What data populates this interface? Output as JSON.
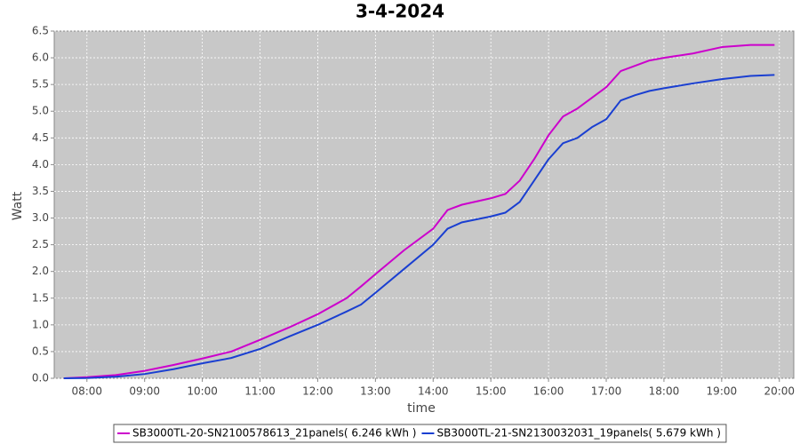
{
  "chart_data": {
    "type": "line",
    "title": "3-4-2024",
    "x_label": "time",
    "y_label": "Watt",
    "x": [
      "07:36",
      "08:00",
      "08:30",
      "09:00",
      "09:30",
      "10:00",
      "10:30",
      "11:00",
      "11:30",
      "12:00",
      "12:30",
      "12:45",
      "13:00",
      "13:30",
      "14:00",
      "14:15",
      "14:30",
      "15:00",
      "15:15",
      "15:30",
      "15:45",
      "16:00",
      "16:15",
      "16:30",
      "16:45",
      "17:00",
      "17:15",
      "17:30",
      "17:45",
      "18:00",
      "18:30",
      "19:00",
      "19:30",
      "19:55"
    ],
    "series": [
      {
        "name": "SB3000TL-20-SN2100578613_21panels( 6.246 kWh )",
        "color": "#cc00cc",
        "values": [
          0,
          0.02,
          0.06,
          0.14,
          0.25,
          0.37,
          0.5,
          0.72,
          0.95,
          1.2,
          1.5,
          1.72,
          1.95,
          2.4,
          2.8,
          3.15,
          3.25,
          3.37,
          3.45,
          3.7,
          4.1,
          4.55,
          4.9,
          5.05,
          5.25,
          5.45,
          5.75,
          5.85,
          5.95,
          6.0,
          6.08,
          6.2,
          6.24,
          6.24
        ]
      },
      {
        "name": "SB3000TL-21-SN2130032031_19panels( 5.679 kWh )",
        "color": "#1a3fd1",
        "values": [
          0,
          0.005,
          0.03,
          0.08,
          0.17,
          0.28,
          0.38,
          0.55,
          0.78,
          1.0,
          1.25,
          1.38,
          1.6,
          2.05,
          2.5,
          2.8,
          2.92,
          3.03,
          3.1,
          3.3,
          3.7,
          4.1,
          4.4,
          4.5,
          4.7,
          4.85,
          5.2,
          5.3,
          5.38,
          5.43,
          5.52,
          5.6,
          5.66,
          5.68
        ]
      }
    ],
    "xlim": [
      "07:26",
      "20:15"
    ],
    "xticks": [
      "08:00",
      "09:00",
      "10:00",
      "11:00",
      "12:00",
      "13:00",
      "14:00",
      "15:00",
      "16:00",
      "17:00",
      "18:00",
      "19:00",
      "20:00"
    ],
    "ylim": [
      0,
      6.5
    ],
    "yticks": [
      {
        "value": 0,
        "label": "0.0"
      },
      0.5,
      {
        "value": 1,
        "label": "1.0"
      },
      1.5,
      {
        "value": 2,
        "label": "2.0"
      },
      2.5,
      {
        "value": 3,
        "label": "3.0"
      },
      3.5,
      {
        "value": 4,
        "label": "4.0"
      },
      4.5,
      {
        "value": 5,
        "label": "5.0"
      },
      5.5,
      {
        "value": 6,
        "label": "6.0"
      },
      6.5
    ],
    "grid": true
  }
}
